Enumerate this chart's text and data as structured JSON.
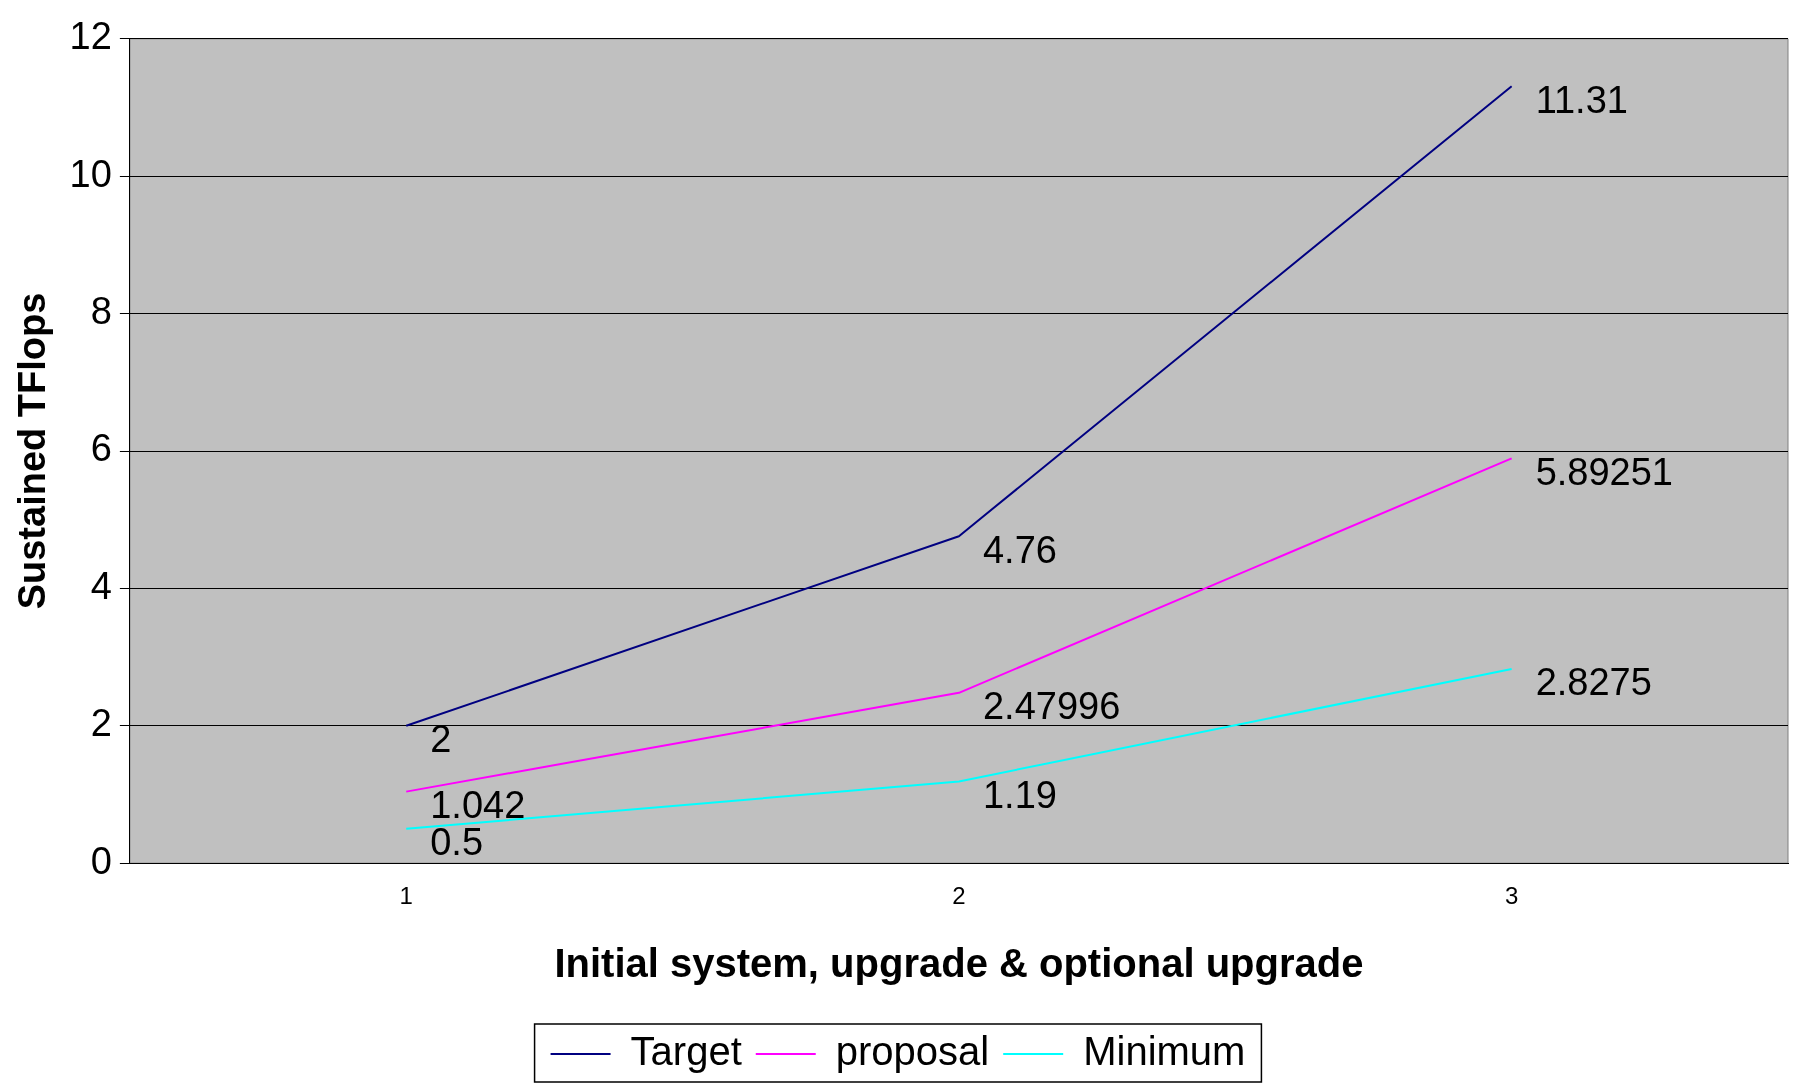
{
  "chart_data": {
    "type": "line",
    "xlabel": "Initial system, upgrade & optional upgrade",
    "ylabel": "Sustained TFlops",
    "categories": [
      "1",
      "2",
      "3"
    ],
    "series": [
      {
        "name": "Target",
        "color": "#000080",
        "values": [
          2,
          4.76,
          11.31
        ]
      },
      {
        "name": "proposal",
        "color": "#ff00ff",
        "values": [
          1.042,
          2.47996,
          5.89251
        ]
      },
      {
        "name": "Minimum",
        "color": "#00ffff",
        "values": [
          0.5,
          1.19,
          2.8275
        ]
      }
    ],
    "ylim": [
      0,
      12
    ],
    "yticks": [
      0,
      2,
      4,
      6,
      8,
      10,
      12
    ],
    "grid": "y",
    "legend": "bottom",
    "marker": "none",
    "line_style": "solid",
    "data_labels": true
  }
}
